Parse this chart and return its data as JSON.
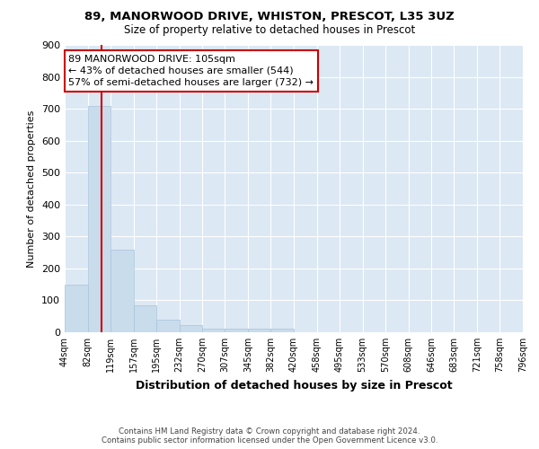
{
  "title1": "89, MANORWOOD DRIVE, WHISTON, PRESCOT, L35 3UZ",
  "title2": "Size of property relative to detached houses in Prescot",
  "xlabel": "Distribution of detached houses by size in Prescot",
  "ylabel": "Number of detached properties",
  "bin_labels": [
    "44sqm",
    "82sqm",
    "119sqm",
    "157sqm",
    "195sqm",
    "232sqm",
    "270sqm",
    "307sqm",
    "345sqm",
    "382sqm",
    "420sqm",
    "458sqm",
    "495sqm",
    "533sqm",
    "570sqm",
    "608sqm",
    "646sqm",
    "683sqm",
    "721sqm",
    "758sqm",
    "796sqm"
  ],
  "bin_edges": [
    44,
    82,
    119,
    157,
    195,
    232,
    270,
    307,
    345,
    382,
    420,
    458,
    495,
    533,
    570,
    608,
    646,
    683,
    721,
    758,
    796
  ],
  "bar_heights": [
    150,
    710,
    260,
    85,
    38,
    22,
    12,
    10,
    10,
    12,
    0,
    0,
    0,
    0,
    0,
    0,
    0,
    0,
    0,
    0
  ],
  "bar_color": "#c8dcec",
  "bar_edgecolor": "#a8c4dc",
  "property_size": 105,
  "vline_color": "#cc0000",
  "annotation_text": "89 MANORWOOD DRIVE: 105sqm\n← 43% of detached houses are smaller (544)\n57% of semi-detached houses are larger (732) →",
  "annotation_box_color": "white",
  "annotation_box_edgecolor": "#cc0000",
  "footnote": "Contains HM Land Registry data © Crown copyright and database right 2024.\nContains public sector information licensed under the Open Government Licence v3.0.",
  "ylim": [
    0,
    900
  ],
  "yticks": [
    0,
    100,
    200,
    300,
    400,
    500,
    600,
    700,
    800,
    900
  ],
  "fig_background": "#ffffff",
  "plot_bg_color": "#dce8f4",
  "grid_color": "#ffffff"
}
